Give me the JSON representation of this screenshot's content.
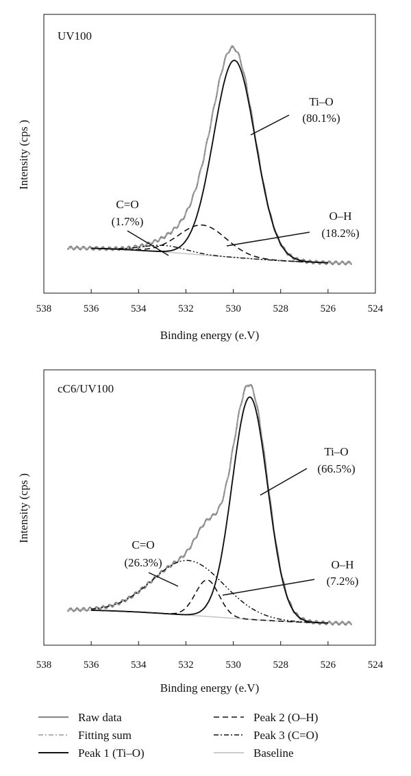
{
  "chart_data": [
    {
      "type": "line",
      "panel_label": "UV100",
      "xlabel": "Binding energy (e.V)",
      "ylabel": "Intensity (cps )",
      "xlim": [
        538,
        524
      ],
      "x_ticks": [
        538,
        536,
        534,
        532,
        530,
        528,
        526,
        524
      ],
      "x_reversed": true,
      "ylim": [
        0,
        1.08
      ],
      "grid": false,
      "annotations": [
        {
          "label": "Ti–O",
          "value": "(80.1%)"
        },
        {
          "label": "C=O",
          "value": "(1.7%)"
        },
        {
          "label": "O–H",
          "value": "(18.2%)"
        }
      ],
      "components": {
        "peak1": {
          "center": 529.95,
          "amplitude": 0.905,
          "sigma": 0.88
        },
        "peak2": {
          "center": 531.3,
          "amplitude": 0.137,
          "sigma": 1.0
        },
        "peak3": {
          "center": 532.9,
          "amplitude": 0.03,
          "sigma": 0.9
        },
        "baseline": {
          "left_x": 537.0,
          "left_y": 0.069,
          "right_x": 525.0,
          "right_y": 0.0
        }
      }
    },
    {
      "type": "line",
      "panel_label": "cC6/UV100",
      "xlabel": "Binding energy (e.V)",
      "ylabel": "Intensity (cps )",
      "xlim": [
        538,
        524
      ],
      "x_ticks": [
        538,
        536,
        534,
        532,
        530,
        528,
        526,
        524
      ],
      "x_reversed": true,
      "ylim": [
        0,
        1.08
      ],
      "grid": false,
      "annotations": [
        {
          "label": "Ti–O",
          "value": "(66.5%)"
        },
        {
          "label": "C=O",
          "value": "(26.3%)"
        },
        {
          "label": "O–H",
          "value": "(7.2%)"
        }
      ],
      "components": {
        "peak1": {
          "center": 529.3,
          "amplitude": 1.005,
          "sigma": 0.75
        },
        "peak2": {
          "center": 531.1,
          "amplitude": 0.165,
          "sigma": 0.5
        },
        "peak3": {
          "center": 531.9,
          "amplitude": 0.247,
          "sigma": 1.5
        },
        "baseline": {
          "left_x": 537.0,
          "left_y": 0.06,
          "right_x": 525.0,
          "right_y": 0.0
        }
      }
    }
  ],
  "legend": [
    {
      "label": "Raw data",
      "style": "raw",
      "color": "#888888"
    },
    {
      "label": "Peak 2 (O–H)",
      "style": "dashed",
      "color": "#111111"
    },
    {
      "label": "Fitting sum",
      "style": "dashdot",
      "color": "#999999"
    },
    {
      "label": "Peak 3 (C=O)",
      "style": "dashdot",
      "color": "#111111"
    },
    {
      "label": "Peak 1 (Ti–O)",
      "style": "solid",
      "color": "#111111"
    },
    {
      "label": "Baseline",
      "style": "baseline",
      "color": "#bbbbbb"
    }
  ]
}
